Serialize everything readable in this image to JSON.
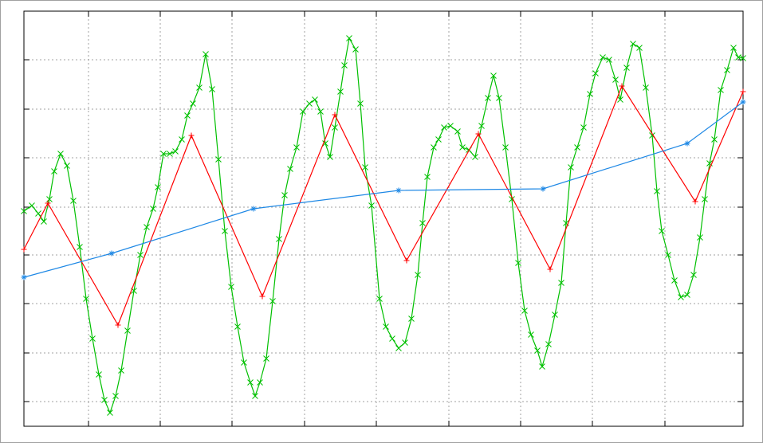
{
  "chart_data": {
    "type": "line",
    "grid": true,
    "xlim": [
      0,
      902
    ],
    "ylim": [
      0,
      521
    ],
    "xticks": [
      81,
      171,
      261,
      352,
      442,
      533,
      623,
      713,
      804
    ],
    "yticks": [
      31,
      92,
      154,
      215,
      275,
      337,
      398,
      460
    ],
    "series": [
      {
        "color": "#00c000",
        "marker": "x",
        "x": [
          0,
          10,
          18,
          25,
          32,
          38,
          46,
          54,
          62,
          70,
          78,
          86,
          94,
          101,
          108,
          115,
          122,
          130,
          138,
          146,
          154,
          162,
          168,
          175,
          183,
          190,
          198,
          205,
          212,
          220,
          228,
          236,
          244,
          252,
          260,
          268,
          276,
          284,
          290,
          296,
          304,
          312,
          320,
          327,
          334,
          342,
          350,
          358,
          365,
          372,
          378,
          384,
          390,
          397,
          402,
          408,
          416,
          422,
          428,
          436,
          446,
          454,
          462,
          470,
          478,
          486,
          494,
          500,
          506,
          514,
          520,
          527,
          535,
          544,
          550,
          558,
          566,
          574,
          582,
          589,
          596,
          604,
          612,
          620,
          628,
          636,
          644,
          650,
          658,
          666,
          674,
          680,
          686,
          694,
          702,
          710,
          717,
          726,
          734,
          742,
          748,
          756,
          764,
          772,
          780,
          788,
          794,
          800,
          808,
          816,
          824,
          832,
          840,
          848,
          854,
          860,
          866,
          874,
          882,
          890,
          896,
          902
        ],
        "values": [
          270,
          277,
          267,
          257,
          285,
          320,
          342,
          327,
          283,
          225,
          160,
          110,
          65,
          33,
          17,
          38,
          70,
          120,
          170,
          215,
          250,
          273,
          300,
          342,
          342,
          345,
          360,
          390,
          405,
          425,
          467,
          423,
          335,
          245,
          175,
          125,
          80,
          55,
          38,
          55,
          85,
          157,
          235,
          290,
          323,
          350,
          395,
          405,
          410,
          395,
          355,
          338,
          375,
          420,
          453,
          487,
          473,
          405,
          325,
          277,
          160,
          125,
          110,
          98,
          105,
          135,
          190,
          255,
          313,
          350,
          360,
          375,
          377,
          370,
          350,
          347,
          338,
          377,
          412,
          440,
          412,
          350,
          285,
          205,
          145,
          115,
          95,
          75,
          103,
          140,
          180,
          255,
          325,
          350,
          375,
          417,
          443,
          463,
          460,
          435,
          410,
          450,
          480,
          475,
          425,
          365,
          295,
          245,
          215,
          183,
          162,
          165,
          190,
          237,
          285,
          330,
          360,
          422,
          447,
          475,
          463,
          462
        ]
      },
      {
        "color": "#ff0000",
        "marker": "plus",
        "x": [
          0,
          30,
          118,
          210,
          299,
          390,
          480,
          570,
          660,
          750,
          842,
          902
        ],
        "values": [
          222,
          280,
          127,
          365,
          163,
          391,
          208,
          367,
          197,
          427,
          282,
          420
        ]
      },
      {
        "color": "#1e88e5",
        "marker": "star",
        "x": [
          0,
          110,
          288,
          470,
          651,
          832,
          902
        ],
        "values": [
          187,
          217,
          273,
          296,
          298,
          355,
          407
        ]
      }
    ]
  }
}
